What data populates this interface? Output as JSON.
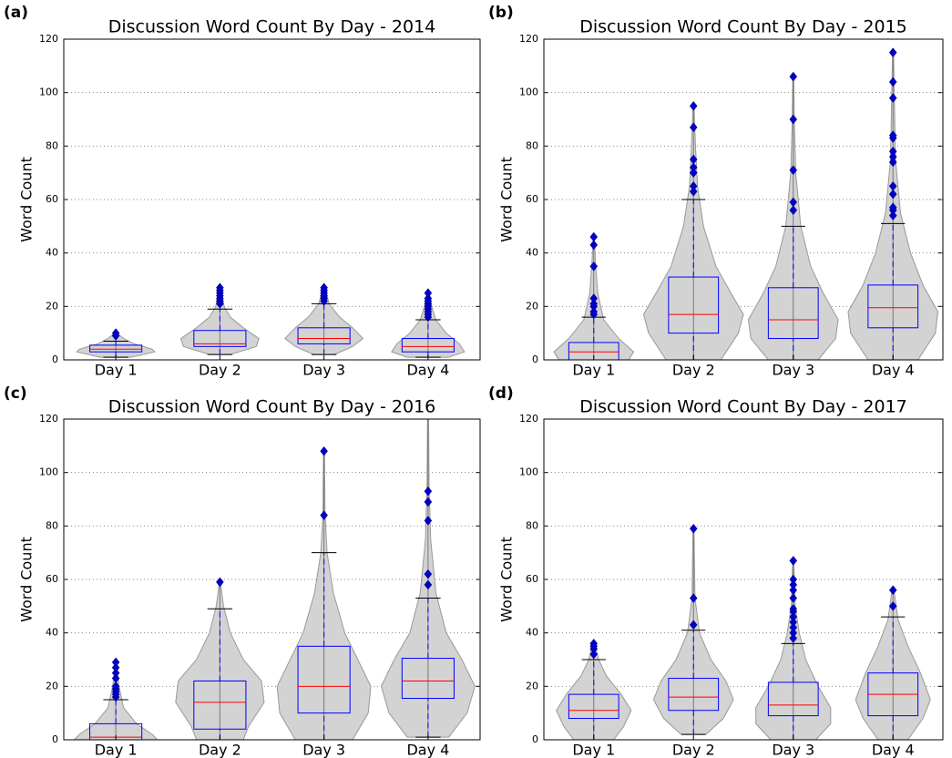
{
  "chart_data": [
    {
      "type": "violin",
      "panel_label": "(a)",
      "title": "Discussion Word Count By Day - 2014",
      "ylabel": "Word Count",
      "categories": [
        "Day 1",
        "Day 2",
        "Day 3",
        "Day 4"
      ],
      "ylim": [
        0,
        120
      ],
      "yticks": [
        0,
        20,
        40,
        60,
        80,
        100,
        120
      ],
      "grid": true,
      "box_color": "#0000ff",
      "median_color": "#ff0000",
      "violin_color": "#d3d3d3",
      "outlier_color": "#0000cc",
      "boxes": [
        {
          "whiskers": [
            1,
            7
          ],
          "q1": 3,
          "median": 4,
          "q3": 5.5,
          "outliers": [
            9,
            10
          ],
          "violin": {
            "y": [
              1,
              3,
              4,
              6,
              8,
              10
            ],
            "width": [
              0.3,
              0.75,
              0.7,
              0.35,
              0.15,
              0.02
            ]
          }
        },
        {
          "whiskers": [
            2,
            19
          ],
          "q1": 5,
          "median": 6,
          "q3": 11,
          "outliers": [
            21,
            22,
            23,
            24,
            25,
            26,
            27
          ],
          "violin": {
            "y": [
              2,
              5,
              8,
              12,
              16,
              20,
              27
            ],
            "width": [
              0.2,
              0.7,
              0.75,
              0.45,
              0.2,
              0.08,
              0.02
            ]
          }
        },
        {
          "whiskers": [
            2,
            21
          ],
          "q1": 6,
          "median": 8,
          "q3": 12,
          "outliers": [
            22,
            23,
            24,
            25,
            26,
            27
          ],
          "violin": {
            "y": [
              2,
              5,
              8,
              12,
              16,
              21,
              27
            ],
            "width": [
              0.2,
              0.55,
              0.75,
              0.55,
              0.3,
              0.1,
              0.02
            ]
          }
        },
        {
          "whiskers": [
            1,
            15
          ],
          "q1": 3,
          "median": 5,
          "q3": 8,
          "outliers": [
            16,
            17,
            18,
            19,
            20,
            21,
            22,
            23,
            25
          ],
          "violin": {
            "y": [
              1,
              3,
              6,
              10,
              15,
              20,
              25
            ],
            "width": [
              0.4,
              0.7,
              0.6,
              0.35,
              0.15,
              0.07,
              0.02
            ]
          }
        }
      ]
    },
    {
      "type": "violin",
      "panel_label": "(b)",
      "title": "Discussion Word Count By Day - 2015",
      "ylabel": "Word Count",
      "categories": [
        "Day 1",
        "Day 2",
        "Day 3",
        "Day 4"
      ],
      "ylim": [
        0,
        120
      ],
      "yticks": [
        0,
        20,
        40,
        60,
        80,
        100,
        120
      ],
      "grid": true,
      "box_color": "#0000ff",
      "median_color": "#ff0000",
      "violin_color": "#d3d3d3",
      "outlier_color": "#0000cc",
      "boxes": [
        {
          "whiskers": [
            0,
            16
          ],
          "q1": 0,
          "median": 3,
          "q3": 6.5,
          "outliers": [
            17,
            18,
            20,
            21,
            23,
            35,
            43,
            46
          ],
          "violin": {
            "y": [
              0,
              3,
              8,
              15,
              25,
              35,
              46
            ],
            "width": [
              0.7,
              0.8,
              0.5,
              0.2,
              0.08,
              0.04,
              0.01
            ]
          }
        },
        {
          "whiskers": [
            0,
            60
          ],
          "q1": 10,
          "median": 17,
          "q3": 31,
          "outliers": [
            63,
            65,
            70,
            72,
            75,
            87,
            95
          ],
          "violin": {
            "y": [
              0,
              10,
              17,
              25,
              35,
              50,
              65,
              80,
              95
            ],
            "width": [
              0.55,
              0.9,
              1.0,
              0.75,
              0.45,
              0.2,
              0.08,
              0.04,
              0.01
            ]
          }
        },
        {
          "whiskers": [
            0,
            50
          ],
          "q1": 8,
          "median": 15,
          "q3": 27,
          "outliers": [
            56,
            59,
            71,
            90,
            106
          ],
          "violin": {
            "y": [
              0,
              8,
              15,
              25,
              35,
              50,
              70,
              90,
              106
            ],
            "width": [
              0.5,
              0.85,
              0.9,
              0.6,
              0.35,
              0.15,
              0.05,
              0.02,
              0.01
            ]
          }
        },
        {
          "whiskers": [
            0,
            51
          ],
          "q1": 12,
          "median": 19.5,
          "q3": 28,
          "outliers": [
            54,
            56,
            57,
            62,
            65,
            74,
            76,
            78,
            83,
            84,
            98,
            104,
            115
          ],
          "violin": {
            "y": [
              0,
              10,
              18,
              28,
              40,
              55,
              75,
              95,
              115
            ],
            "width": [
              0.5,
              0.85,
              0.9,
              0.6,
              0.35,
              0.15,
              0.05,
              0.03,
              0.01
            ]
          }
        }
      ]
    },
    {
      "type": "violin",
      "panel_label": "(c)",
      "title": "Discussion Word Count By Day - 2016",
      "ylabel": "Word Count",
      "categories": [
        "Day 1",
        "Day 2",
        "Day 3",
        "Day 4"
      ],
      "ylim": [
        0,
        120
      ],
      "yticks": [
        0,
        20,
        40,
        60,
        80,
        100,
        120
      ],
      "grid": true,
      "box_color": "#0000ff",
      "median_color": "#ff0000",
      "violin_color": "#d3d3d3",
      "outlier_color": "#0000cc",
      "boxes": [
        {
          "whiskers": [
            0,
            15
          ],
          "q1": 0,
          "median": 1,
          "q3": 6,
          "outliers": [
            16,
            17,
            18,
            19,
            20,
            23,
            25,
            27,
            29
          ],
          "violin": {
            "y": [
              0,
              2,
              6,
              12,
              20,
              29
            ],
            "width": [
              0.8,
              0.7,
              0.4,
              0.15,
              0.06,
              0.01
            ]
          }
        },
        {
          "whiskers": [
            0,
            49
          ],
          "q1": 4,
          "median": 14,
          "q3": 22,
          "outliers": [
            59
          ],
          "violin": {
            "y": [
              0,
              5,
              14,
              22,
              30,
              40,
              50,
              59
            ],
            "width": [
              0.45,
              0.55,
              0.85,
              0.8,
              0.45,
              0.2,
              0.07,
              0.01
            ]
          }
        },
        {
          "whiskers": [
            0,
            70
          ],
          "q1": 10,
          "median": 20,
          "q3": 35,
          "outliers": [
            84,
            108
          ],
          "violin": {
            "y": [
              0,
              10,
              20,
              30,
              40,
              55,
              70,
              85,
              108
            ],
            "width": [
              0.55,
              0.85,
              0.9,
              0.65,
              0.4,
              0.18,
              0.06,
              0.02,
              0.01
            ]
          }
        },
        {
          "whiskers": [
            1,
            53
          ],
          "q1": 15.5,
          "median": 22,
          "q3": 30.5,
          "outliers": [
            58,
            62,
            82,
            89,
            93
          ],
          "violin": {
            "y": [
              1,
              10,
              20,
              30,
              40,
              55,
              75,
              95,
              120
            ],
            "width": [
              0.4,
              0.75,
              0.9,
              0.65,
              0.35,
              0.15,
              0.05,
              0.02,
              0.01
            ]
          }
        }
      ]
    },
    {
      "type": "violin",
      "panel_label": "(d)",
      "title": "Discussion Word Count By Day - 2017",
      "ylabel": "Word Count",
      "categories": [
        "Day 1",
        "Day 2",
        "Day 3",
        "Day 4"
      ],
      "ylim": [
        0,
        120
      ],
      "yticks": [
        0,
        20,
        40,
        60,
        80,
        100,
        120
      ],
      "grid": true,
      "box_color": "#0000ff",
      "median_color": "#ff0000",
      "violin_color": "#d3d3d3",
      "outlier_color": "#0000cc",
      "boxes": [
        {
          "whiskers": [
            0,
            30
          ],
          "q1": 8,
          "median": 11,
          "q3": 17,
          "outliers": [
            32,
            34,
            35,
            36
          ],
          "violin": {
            "y": [
              0,
              5,
              11,
              17,
              24,
              30,
              36
            ],
            "width": [
              0.4,
              0.6,
              0.75,
              0.55,
              0.25,
              0.1,
              0.02
            ]
          }
        },
        {
          "whiskers": [
            2,
            41
          ],
          "q1": 11,
          "median": 16,
          "q3": 23,
          "outliers": [
            43,
            53,
            79
          ],
          "violin": {
            "y": [
              2,
              8,
              15,
              22,
              30,
              40,
              53,
              79
            ],
            "width": [
              0.25,
              0.6,
              0.8,
              0.65,
              0.35,
              0.12,
              0.03,
              0.01
            ]
          }
        },
        {
          "whiskers": [
            0,
            36
          ],
          "q1": 9,
          "median": 13,
          "q3": 21.5,
          "outliers": [
            38,
            40,
            42,
            44,
            46,
            48,
            49,
            53,
            56,
            58,
            60,
            67
          ],
          "violin": {
            "y": [
              0,
              6,
              12,
              20,
              30,
              40,
              50,
              67
            ],
            "width": [
              0.45,
              0.75,
              0.75,
              0.5,
              0.25,
              0.12,
              0.04,
              0.01
            ]
          }
        },
        {
          "whiskers": [
            0,
            46
          ],
          "q1": 9,
          "median": 17,
          "q3": 25,
          "outliers": [
            50,
            56
          ],
          "violin": {
            "y": [
              0,
              8,
              15,
              25,
              35,
              45,
              56
            ],
            "width": [
              0.3,
              0.6,
              0.75,
              0.55,
              0.3,
              0.1,
              0.02
            ]
          }
        }
      ]
    }
  ]
}
